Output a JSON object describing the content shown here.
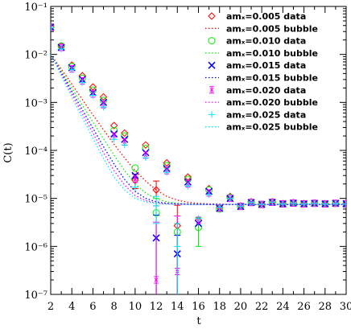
{
  "chart_data": {
    "type": "scatter",
    "x_label": "t",
    "y_label": "C(t)",
    "log_y": true,
    "legend": "upper right",
    "xlim": [
      2,
      30
    ],
    "xticks": [
      2,
      4,
      6,
      8,
      10,
      12,
      14,
      16,
      18,
      20,
      22,
      24,
      26,
      28,
      30
    ],
    "ylim": [
      1e-07,
      0.1
    ],
    "yticks": [
      {
        "value": 1e-07,
        "label": "10⁻⁷"
      },
      {
        "value": 1e-06,
        "label": "10⁻⁶"
      },
      {
        "value": 1e-05,
        "label": "10⁻⁵"
      },
      {
        "value": 0.0001,
        "label": "10⁻⁴"
      },
      {
        "value": 0.001,
        "label": "10⁻³"
      },
      {
        "value": 0.01,
        "label": "10⁻²"
      },
      {
        "value": 0.1,
        "label": "10⁻¹"
      }
    ],
    "x": [
      2,
      3,
      4,
      5,
      6,
      7,
      8,
      9,
      10,
      11,
      12,
      13,
      14,
      15,
      16,
      17,
      18,
      19,
      20,
      21,
      22,
      23,
      24,
      25,
      26,
      27,
      28,
      29,
      30
    ],
    "series": [
      {
        "name": "amₓ=0.005  data",
        "color": "#ff0000",
        "marker": "diamond",
        "values": [
          0.038,
          0.015,
          0.006,
          0.0036,
          0.0021,
          0.0013,
          0.00033,
          0.00023,
          2.4e-05,
          0.00013,
          1.5e-05,
          5.5e-05,
          2.7e-06,
          2.8e-05,
          3.5e-06,
          1.6e-05,
          6.5e-06,
          1.1e-05,
          7e-06,
          8.5e-06,
          7.5e-06,
          8.5e-06,
          7.8e-06,
          8.2e-06,
          7.8e-06,
          8e-06,
          7.8e-06,
          8e-06,
          7.8e-06
        ],
        "errors": [
          null,
          null,
          null,
          null,
          null,
          null,
          null,
          null,
          8e-06,
          null,
          8e-06,
          null,
          4.5e-06,
          null,
          null,
          null,
          null,
          null,
          null,
          null,
          null,
          null,
          null,
          null,
          null,
          null,
          null,
          null,
          null
        ]
      },
      {
        "name": "amₓ=0.005  bubble",
        "color": "#ff0000",
        "linestyle": "dotted",
        "values": [
          0.01,
          0.005,
          0.0024,
          0.00115,
          0.00055,
          0.00027,
          0.000135,
          7e-05,
          3.8e-05,
          2.3e-05,
          1.5e-05,
          1.1e-05,
          9.2e-06,
          8.3e-06,
          7.9e-06,
          7.7e-06,
          7.6e-06,
          7.5e-06,
          7.5e-06,
          7.5e-06,
          7.5e-06,
          7.5e-06,
          7.5e-06,
          7.5e-06,
          7.5e-06,
          7.5e-06,
          7.5e-06,
          7.5e-06,
          7.5e-06
        ]
      },
      {
        "name": "amₓ=0.010  data",
        "color": "#00ee00",
        "marker": "circle",
        "values": [
          0.038,
          0.015,
          0.0056,
          0.0032,
          0.0018,
          0.0011,
          0.00026,
          0.0002,
          4.3e-05,
          0.00011,
          5e-06,
          4.8e-05,
          2e-06,
          2.5e-05,
          2.5e-06,
          1.5e-05,
          6e-06,
          1.05e-05,
          6.8e-06,
          8.3e-06,
          7.5e-06,
          8.4e-06,
          7.7e-06,
          8.1e-06,
          7.7e-06,
          8e-06,
          7.7e-06,
          7.9e-06,
          7.7e-06
        ],
        "errors": [
          null,
          null,
          null,
          null,
          null,
          null,
          null,
          null,
          null,
          null,
          5e-06,
          null,
          null,
          null,
          1.5e-06,
          null,
          null,
          null,
          null,
          null,
          null,
          null,
          null,
          null,
          null,
          null,
          null,
          null,
          null
        ]
      },
      {
        "name": "amₓ=0.010  bubble",
        "color": "#00ee00",
        "linestyle": "dotted",
        "values": [
          0.01,
          0.0045,
          0.002,
          0.00088,
          0.00039,
          0.000175,
          8e-05,
          3.8e-05,
          2e-05,
          1.3e-05,
          9.8e-06,
          8.5e-06,
          7.9e-06,
          7.7e-06,
          7.6e-06,
          7.5e-06,
          7.5e-06,
          7.5e-06,
          7.5e-06,
          7.5e-06,
          7.5e-06,
          7.5e-06,
          7.5e-06,
          7.5e-06,
          7.5e-06,
          7.5e-06,
          7.5e-06,
          7.5e-06,
          7.5e-06
        ]
      },
      {
        "name": "amₓ=0.015  data",
        "color": "#0000ff",
        "marker": "x",
        "values": [
          0.037,
          0.014,
          0.0053,
          0.003,
          0.0016,
          0.001,
          0.00022,
          0.00017,
          3e-05,
          9e-05,
          1.5e-06,
          4.2e-05,
          7e-07,
          2.2e-05,
          3e-06,
          1.4e-05,
          6.2e-06,
          1e-05,
          6.8e-06,
          8.2e-06,
          7.5e-06,
          8.3e-06,
          7.7e-06,
          8e-06,
          7.7e-06,
          7.9e-06,
          7.7e-06,
          7.9e-06,
          7.7e-06
        ],
        "errors": [
          null,
          null,
          null,
          null,
          null,
          null,
          null,
          null,
          null,
          null,
          3e-06,
          null,
          1e-06,
          null,
          null,
          null,
          null,
          null,
          null,
          null,
          null,
          null,
          null,
          null,
          null,
          null,
          null,
          null,
          null
        ]
      },
      {
        "name": "amₓ=0.015  bubble",
        "color": "#0000ff",
        "linestyle": "dotted",
        "values": [
          0.01,
          0.0042,
          0.0017,
          0.0007,
          0.00029,
          0.00012,
          5.2e-05,
          2.5e-05,
          1.4e-05,
          1e-05,
          8.5e-06,
          7.9e-06,
          7.7e-06,
          7.6e-06,
          7.5e-06,
          7.5e-06,
          7.5e-06,
          7.5e-06,
          7.5e-06,
          7.5e-06,
          7.5e-06,
          7.5e-06,
          7.5e-06,
          7.5e-06,
          7.5e-06,
          7.5e-06,
          7.5e-06,
          7.5e-06,
          7.5e-06
        ]
      },
      {
        "name": "amₓ=0.020  data",
        "color": "#ff00ff",
        "marker": "star",
        "values": [
          0.037,
          0.014,
          0.005,
          0.0028,
          0.0015,
          0.0009,
          0.0002,
          0.00015,
          2.5e-05,
          8e-05,
          2e-07,
          3.8e-05,
          3e-07,
          2e-05,
          3.5e-06,
          1.3e-05,
          6.3e-06,
          1e-05,
          6.8e-06,
          8.2e-06,
          7.5e-06,
          8.3e-06,
          7.7e-06,
          8e-06,
          7.7e-06,
          7.9e-06,
          7.7e-06,
          7.9e-06,
          7.7e-06
        ],
        "errors": [
          null,
          null,
          null,
          null,
          null,
          null,
          null,
          null,
          null,
          null,
          3e-06,
          null,
          4e-06,
          null,
          null,
          null,
          null,
          null,
          null,
          null,
          null,
          null,
          null,
          null,
          null,
          null,
          null,
          null,
          null
        ]
      },
      {
        "name": "amₓ=0.020  bubble",
        "color": "#ff00ff",
        "linestyle": "dotted",
        "values": [
          0.01,
          0.0039,
          0.0015,
          0.00058,
          0.00023,
          9e-05,
          3.8e-05,
          1.9e-05,
          1.15e-05,
          9e-06,
          8e-06,
          7.7e-06,
          7.6e-06,
          7.5e-06,
          7.5e-06,
          7.5e-06,
          7.5e-06,
          7.5e-06,
          7.5e-06,
          7.5e-06,
          7.5e-06,
          7.5e-06,
          7.5e-06,
          7.5e-06,
          7.5e-06,
          7.5e-06,
          7.5e-06,
          7.5e-06,
          7.5e-06
        ]
      },
      {
        "name": "amₓ=0.025  data",
        "color": "#00e5ff",
        "marker": "plus",
        "values": [
          0.036,
          0.013,
          0.0048,
          0.0026,
          0.0014,
          0.0008,
          0.00017,
          0.00013,
          1.7e-05,
          7e-05,
          7e-06,
          3.5e-05,
          1e-06,
          1.8e-05,
          3.8e-06,
          1.2e-05,
          6.5e-06,
          1e-05,
          6.8e-06,
          8.2e-06,
          7.5e-06,
          8.3e-06,
          7.7e-06,
          8e-06,
          7.7e-06,
          7.9e-06,
          7.7e-06,
          7.9e-06,
          7.7e-06
        ],
        "errors": [
          null,
          null,
          null,
          null,
          null,
          null,
          null,
          null,
          null,
          null,
          4e-06,
          null,
          2e-06,
          null,
          null,
          null,
          null,
          null,
          null,
          null,
          null,
          null,
          null,
          null,
          null,
          null,
          null,
          null,
          null
        ]
      },
      {
        "name": "amₓ=0.025  bubble",
        "color": "#00e5ff",
        "linestyle": "dotted",
        "values": [
          0.01,
          0.0036,
          0.0013,
          0.00048,
          0.00018,
          6.8e-05,
          2.8e-05,
          1.5e-05,
          1e-05,
          8.5e-06,
          7.8e-06,
          7.6e-06,
          7.5e-06,
          7.5e-06,
          7.5e-06,
          7.5e-06,
          7.5e-06,
          7.5e-06,
          7.5e-06,
          7.5e-06,
          7.5e-06,
          7.5e-06,
          7.5e-06,
          7.5e-06,
          7.5e-06,
          7.5e-06,
          7.5e-06,
          7.5e-06,
          7.5e-06
        ]
      }
    ]
  }
}
